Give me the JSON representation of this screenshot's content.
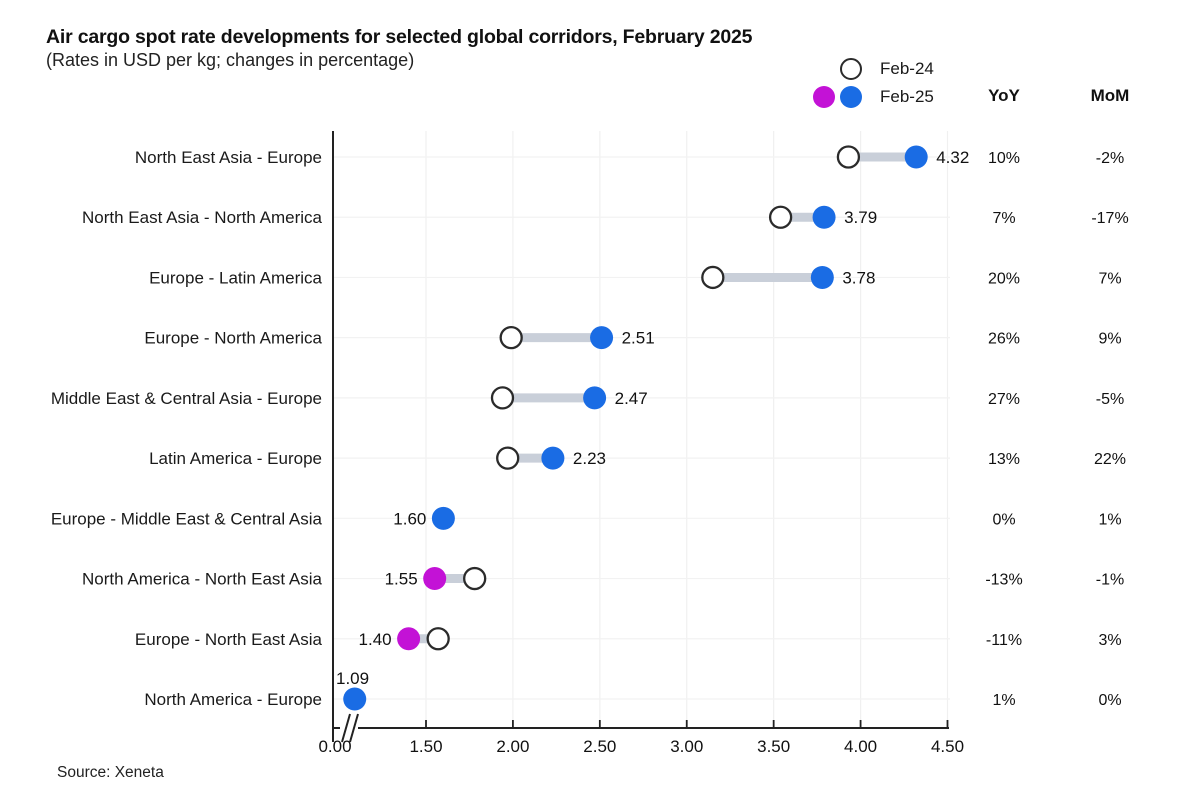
{
  "header": {
    "title": "Air cargo spot rate developments for selected global corridors, February 2025",
    "subtitle": "(Rates in USD per kg; changes in percentage)"
  },
  "legend": {
    "feb24_label": "Feb-24",
    "feb25_label": "Feb-25"
  },
  "columns": {
    "yoy": "YoY",
    "mom": "MoM"
  },
  "footer": {
    "source": "Source: Xeneta"
  },
  "colors": {
    "feb25_up": "#1a6ce4",
    "feb25_down": "#c312d6",
    "feb24_stroke": "#2b2b2b",
    "connector": "#c9cfd9",
    "grid_vertical": "#f0f0f0",
    "grid_horizontal": "#f2f2f2",
    "axis": "#222222",
    "text": "#1a1a1a"
  },
  "chart_data": {
    "type": "dumbbell",
    "title": "Air cargo spot rate developments for selected global corridors, February 2025",
    "subtitle": "(Rates in USD per kg; changes in percentage)",
    "series_names": [
      "Feb-24",
      "Feb-25"
    ],
    "legend_position": "top-right",
    "grid": true,
    "x_axis": {
      "tick_values": [
        0,
        1.5,
        2,
        2.5,
        3,
        3.5,
        4,
        4.5
      ],
      "tick_labels": [
        "0.00",
        "1.50",
        "2.00",
        "2.50",
        "3.00",
        "3.50",
        "4.00",
        "4.50"
      ],
      "axis_break_between": [
        0,
        1.5
      ]
    },
    "rows": [
      {
        "corridor": "North East Asia - Europe",
        "feb24": 3.93,
        "feb25": 4.32,
        "value_label": "4.32",
        "yoy": "10%",
        "mom": "-2%",
        "direction": "up",
        "value_label_pos": "right"
      },
      {
        "corridor": "North East Asia - North America",
        "feb24": 3.54,
        "feb25": 3.79,
        "value_label": "3.79",
        "yoy": "7%",
        "mom": "-17%",
        "direction": "up",
        "value_label_pos": "right"
      },
      {
        "corridor": "Europe - Latin America",
        "feb24": 3.15,
        "feb25": 3.78,
        "value_label": "3.78",
        "yoy": "20%",
        "mom": "7%",
        "direction": "up",
        "value_label_pos": "right"
      },
      {
        "corridor": "Europe - North America",
        "feb24": 1.99,
        "feb25": 2.51,
        "value_label": "2.51",
        "yoy": "26%",
        "mom": "9%",
        "direction": "up",
        "value_label_pos": "right"
      },
      {
        "corridor": "Middle East & Central Asia - Europe",
        "feb24": 1.94,
        "feb25": 2.47,
        "value_label": "2.47",
        "yoy": "27%",
        "mom": "-5%",
        "direction": "up",
        "value_label_pos": "right"
      },
      {
        "corridor": "Latin America - Europe",
        "feb24": 1.97,
        "feb25": 2.23,
        "value_label": "2.23",
        "yoy": "13%",
        "mom": "22%",
        "direction": "up",
        "value_label_pos": "right"
      },
      {
        "corridor": "Europe - Middle East & Central Asia",
        "feb24": 1.6,
        "feb25": 1.6,
        "value_label": "1.60",
        "yoy": "0%",
        "mom": "1%",
        "direction": "flat",
        "value_label_pos": "left"
      },
      {
        "corridor": "North America - North East Asia",
        "feb24": 1.78,
        "feb25": 1.55,
        "value_label": "1.55",
        "yoy": "-13%",
        "mom": "-1%",
        "direction": "down",
        "value_label_pos": "left"
      },
      {
        "corridor": "Europe - North East Asia",
        "feb24": 1.57,
        "feb25": 1.4,
        "value_label": "1.40",
        "yoy": "-11%",
        "mom": "3%",
        "direction": "down",
        "value_label_pos": "left"
      },
      {
        "corridor": "North America - Europe",
        "feb24": 1.08,
        "feb25": 1.09,
        "value_label": "1.09",
        "yoy": "1%",
        "mom": "0%",
        "direction": "flat",
        "value_label_pos": "above"
      }
    ]
  }
}
